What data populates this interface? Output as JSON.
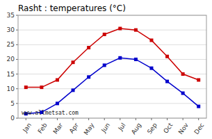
{
  "chart_data": {
    "type": "line",
    "title": "Rasht : temperatures (°C)",
    "categories": [
      "Jan",
      "Feb",
      "Mar",
      "Apr",
      "May",
      "Jun",
      "Jul",
      "Aug",
      "Sep",
      "Oct",
      "Nov",
      "Dec"
    ],
    "series": [
      {
        "color": "#cc0000",
        "marker": "square",
        "values": [
          10.5,
          10.5,
          13,
          19,
          24,
          28.5,
          30.5,
          30,
          26.5,
          21,
          15,
          13
        ]
      },
      {
        "color": "#0000cc",
        "marker": "square",
        "values": [
          1.5,
          2,
          5,
          9.5,
          14,
          18,
          20.5,
          20,
          17,
          12.5,
          8.5,
          4
        ]
      }
    ],
    "ylim": [
      0,
      35
    ],
    "yticks": [
      0,
      5,
      10,
      15,
      20,
      25,
      30,
      35
    ],
    "grid": true,
    "annotations": [
      "www.allmetsat.com"
    ]
  }
}
